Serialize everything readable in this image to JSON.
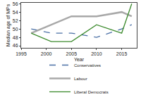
{
  "chart_data": {
    "type": "line",
    "x_label": "Year",
    "y_label": "Median age of MPs",
    "x": [
      1997,
      2001,
      2005,
      2010,
      2015,
      2017
    ],
    "series": [
      {
        "name": "Conservatives",
        "color": "#4a6fa5",
        "line_style": "dashed",
        "values": [
          50,
          49,
          49,
          48,
          50,
          51
        ]
      },
      {
        "name": "Labour",
        "color": "#a8a8a8",
        "line_style": "solid",
        "values": [
          49,
          51,
          53,
          53,
          54,
          53
        ]
      },
      {
        "name": "Liberal Democrats",
        "color": "#3d8b2e",
        "line_style": "solid",
        "values": [
          49,
          47,
          47,
          51,
          49,
          56
        ]
      }
    ],
    "xlim": [
      1995,
      2018
    ],
    "xticks": [
      1995,
      2000,
      2005,
      2010,
      2015
    ],
    "ylim": [
      45.5,
      56.2
    ],
    "yticks": [
      46,
      48,
      50,
      52,
      54,
      56
    ],
    "grid": false,
    "legend": "bottom"
  }
}
